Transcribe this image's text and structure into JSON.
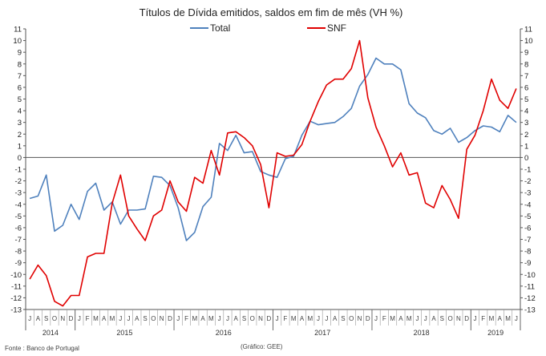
{
  "chart_data": {
    "type": "line",
    "title": "Títulos de Dívida emitidos, saldos em fim de mês  (VH %)",
    "ylim": [
      -13,
      11
    ],
    "y_ticks": [
      -13,
      -12,
      -11,
      -10,
      -9,
      -8,
      -7,
      -6,
      -5,
      -4,
      -3,
      -2,
      -1,
      0,
      1,
      2,
      3,
      4,
      5,
      6,
      7,
      8,
      9,
      10,
      11
    ],
    "grid": false,
    "legend_position": "top",
    "x": [
      "J",
      "A",
      "S",
      "O",
      "N",
      "D",
      "J",
      "F",
      "M",
      "A",
      "M",
      "J",
      "J",
      "A",
      "S",
      "O",
      "N",
      "D",
      "J",
      "F",
      "M",
      "A",
      "M",
      "J",
      "J",
      "A",
      "S",
      "O",
      "N",
      "D",
      "J",
      "F",
      "M",
      "A",
      "M",
      "J",
      "J",
      "A",
      "S",
      "O",
      "N",
      "D",
      "J",
      "F",
      "M",
      "A",
      "M",
      "J",
      "J",
      "A",
      "S",
      "O",
      "N",
      "D",
      "J",
      "F",
      "M",
      "A",
      "M",
      "J"
    ],
    "year_labels": [
      {
        "label": "2014",
        "start": 0,
        "end": 5
      },
      {
        "label": "2015",
        "start": 6,
        "end": 17
      },
      {
        "label": "2016",
        "start": 18,
        "end": 29
      },
      {
        "label": "2017",
        "start": 30,
        "end": 41
      },
      {
        "label": "2018",
        "start": 42,
        "end": 53
      },
      {
        "label": "2019",
        "start": 54,
        "end": 59
      }
    ],
    "series": [
      {
        "name": "Total",
        "color": "#4f81bd",
        "values": [
          -3.5,
          -3.3,
          -1.5,
          -6.3,
          -5.8,
          -4.0,
          -5.3,
          -2.9,
          -2.2,
          -4.5,
          -3.8,
          -5.7,
          -4.5,
          -4.5,
          -4.4,
          -1.6,
          -1.7,
          -2.4,
          -4.3,
          -7.1,
          -6.4,
          -4.2,
          -3.4,
          1.2,
          0.6,
          1.9,
          0.4,
          0.5,
          -1.2,
          -1.5,
          -1.7,
          -0.1,
          0.1,
          1.9,
          3.1,
          2.8,
          2.9,
          3.0,
          3.5,
          4.2,
          6.1,
          7.1,
          8.5,
          8.0,
          8.0,
          7.5,
          4.6,
          3.8,
          3.4,
          2.3,
          2.0,
          2.5,
          1.3,
          1.7,
          2.3,
          2.7,
          2.6,
          2.2,
          3.6,
          3.0
        ]
      },
      {
        "name": "SNF",
        "color": "#e00000",
        "values": [
          -10.4,
          -9.2,
          -10.1,
          -12.3,
          -12.7,
          -11.8,
          -11.8,
          -8.5,
          -8.2,
          -8.2,
          -3.9,
          -1.5,
          -5.0,
          -6.1,
          -7.1,
          -5.0,
          -4.5,
          -2.0,
          -3.8,
          -4.6,
          -1.7,
          -2.2,
          0.6,
          -1.5,
          2.1,
          2.2,
          1.7,
          1.0,
          -0.6,
          -4.3,
          0.4,
          0.1,
          0.2,
          1.1,
          3.1,
          4.8,
          6.2,
          6.7,
          6.7,
          7.6,
          10.0,
          5.1,
          2.6,
          1.0,
          -0.8,
          0.4,
          -1.5,
          -1.3,
          -3.9,
          -4.3,
          -2.4,
          -3.6,
          -5.2,
          0.7,
          1.9,
          4.0,
          6.7,
          4.9,
          4.2,
          5.9
        ]
      }
    ]
  },
  "footer": {
    "source": "Fonte : Banco de Portugal",
    "credit": "(Gráfico: GEE)"
  }
}
